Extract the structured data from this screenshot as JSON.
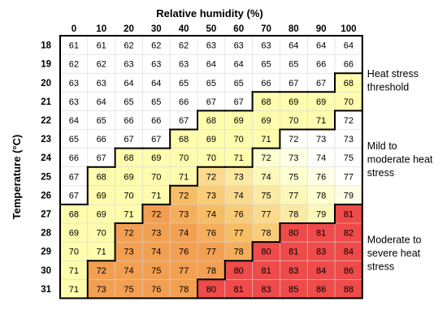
{
  "chart_data": {
    "type": "heatmap",
    "xlabel": "Relative humidity (%)",
    "ylabel": "Temperature (°C)",
    "x": [
      0,
      10,
      20,
      30,
      40,
      50,
      60,
      70,
      80,
      90,
      100
    ],
    "y": [
      18,
      19,
      20,
      21,
      22,
      23,
      24,
      25,
      26,
      27,
      28,
      29,
      30,
      31
    ],
    "values": [
      [
        61,
        61,
        62,
        62,
        62,
        63,
        63,
        63,
        64,
        64,
        64
      ],
      [
        62,
        62,
        63,
        63,
        63,
        64,
        64,
        65,
        65,
        66,
        66
      ],
      [
        63,
        63,
        64,
        64,
        65,
        65,
        65,
        66,
        67,
        67,
        68
      ],
      [
        63,
        64,
        65,
        65,
        66,
        67,
        67,
        68,
        69,
        69,
        70
      ],
      [
        64,
        65,
        66,
        66,
        67,
        68,
        69,
        69,
        70,
        71,
        72
      ],
      [
        65,
        66,
        67,
        67,
        68,
        69,
        70,
        71,
        72,
        73,
        73
      ],
      [
        66,
        67,
        68,
        69,
        70,
        70,
        71,
        72,
        73,
        74,
        75
      ],
      [
        67,
        68,
        69,
        70,
        71,
        72,
        73,
        74,
        75,
        76,
        77
      ],
      [
        67,
        69,
        70,
        71,
        72,
        73,
        74,
        75,
        77,
        78,
        79
      ],
      [
        68,
        69,
        71,
        72,
        73,
        74,
        76,
        77,
        78,
        79,
        81
      ],
      [
        69,
        70,
        72,
        73,
        74,
        76,
        77,
        78,
        80,
        81,
        82
      ],
      [
        70,
        71,
        73,
        74,
        76,
        77,
        78,
        80,
        81,
        83,
        84
      ],
      [
        71,
        72,
        74,
        75,
        77,
        78,
        80,
        81,
        83,
        84,
        86
      ],
      [
        71,
        73,
        75,
        76,
        78,
        80,
        81,
        83,
        85,
        86,
        88
      ]
    ],
    "categories": [
      {
        "label": "Heat stress threshold",
        "min": 68,
        "max": 71,
        "color": "#fffcad"
      },
      {
        "label": "Mild to moderate heat stress",
        "min": 72,
        "max": 79,
        "color": "#f6c362"
      },
      {
        "label": "Moderate to severe heat stress",
        "min": 80,
        "max": 90,
        "color": "#ee4b4a"
      }
    ],
    "gradient": {
      "low": "#fbe9a4",
      "mid": "#f7bd63",
      "high": "#f39f52"
    },
    "no_stress_color": "#ffffff",
    "annotations": [
      {
        "lines": [
          "Heat stress",
          "threshold"
        ],
        "category": 0
      },
      {
        "lines": [
          "Mild to",
          "moderate heat",
          "stress"
        ],
        "category": 1
      },
      {
        "lines": [
          "Moderate to",
          "severe heat",
          "stress"
        ],
        "category": 2
      }
    ]
  }
}
